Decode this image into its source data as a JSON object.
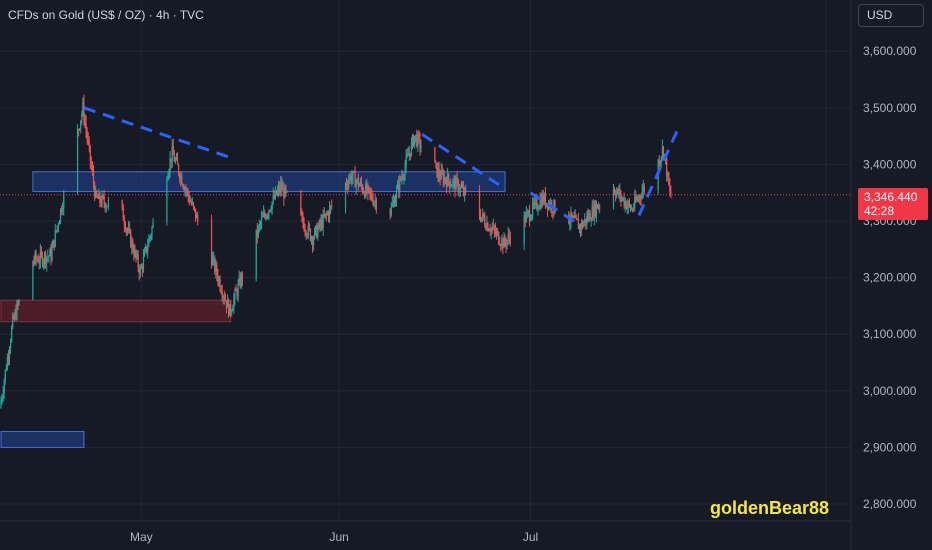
{
  "header": {
    "title": "CFDs on Gold (US$ / OZ) · 4h · TVC"
  },
  "currency_button": {
    "label": "USD"
  },
  "price_badge": {
    "price": "3,346.440",
    "countdown": "42:28"
  },
  "watermark": {
    "text": "goldenBear88"
  },
  "colors": {
    "background": "#161a25",
    "grid": "#232632",
    "up": "#26a69a",
    "down": "#ef5350",
    "trendline": "#2962ff",
    "blue_zone": "#1e3a7a",
    "red_zone": "#5c1f2a",
    "price_line": "#f23645",
    "watermark": "#f5e642"
  },
  "chart_data": {
    "type": "candlestick",
    "title": "CFDs on Gold (US$ / OZ) · 4h · TVC",
    "interval": "4h",
    "currency": "USD",
    "y_axis": {
      "range": [
        2750,
        3650
      ],
      "ticks": [
        2800,
        2900,
        3000,
        3100,
        3200,
        3300,
        3400,
        3500,
        3600
      ],
      "tick_labels": [
        "2,800.000",
        "2,900.000",
        "3,000.000",
        "3,100.000",
        "3,200.000",
        "3,300.000",
        "3,400.000",
        "3,500.000",
        "3,600.000"
      ]
    },
    "x_axis": {
      "date_range": [
        "2025-04-09",
        "2025-07-23"
      ],
      "month_labels": [
        {
          "date": "2025-05-01",
          "label": "May"
        },
        {
          "date": "2025-06-01",
          "label": "Jun"
        },
        {
          "date": "2025-07-01",
          "label": "Jul"
        }
      ]
    },
    "price_path": [
      {
        "date": "2025-04-09",
        "price": 2970
      },
      {
        "date": "2025-04-11",
        "price": 3120
      },
      {
        "date": "2025-04-14",
        "price": 3230
      },
      {
        "date": "2025-04-17",
        "price": 3240
      },
      {
        "date": "2025-04-22",
        "price": 3500
      },
      {
        "date": "2025-04-24",
        "price": 3340
      },
      {
        "date": "2025-04-28",
        "price": 3320
      },
      {
        "date": "2025-05-01",
        "price": 3210
      },
      {
        "date": "2025-05-06",
        "price": 3420
      },
      {
        "date": "2025-05-09",
        "price": 3330
      },
      {
        "date": "2025-05-12",
        "price": 3240
      },
      {
        "date": "2025-05-15",
        "price": 3140
      },
      {
        "date": "2025-05-20",
        "price": 3300
      },
      {
        "date": "2025-05-23",
        "price": 3360
      },
      {
        "date": "2025-05-28",
        "price": 3270
      },
      {
        "date": "2025-06-03",
        "price": 3380
      },
      {
        "date": "2025-06-09",
        "price": 3310
      },
      {
        "date": "2025-06-13",
        "price": 3450
      },
      {
        "date": "2025-06-17",
        "price": 3380
      },
      {
        "date": "2025-06-20",
        "price": 3360
      },
      {
        "date": "2025-06-24",
        "price": 3300
      },
      {
        "date": "2025-06-27",
        "price": 3260
      },
      {
        "date": "2025-07-03",
        "price": 3340
      },
      {
        "date": "2025-07-09",
        "price": 3290
      },
      {
        "date": "2025-07-14",
        "price": 3360
      },
      {
        "date": "2025-07-17",
        "price": 3320
      },
      {
        "date": "2025-07-21",
        "price": 3400
      },
      {
        "date": "2025-07-22",
        "price": 3430
      },
      {
        "date": "2025-07-23",
        "price": 3346.44
      }
    ],
    "last_price": 3346.44,
    "annotations": {
      "zones": [
        {
          "name": "blue-resistance-zone",
          "x1": "2025-04-14",
          "x2": "2025-06-27",
          "y1": 3352,
          "y2": 3387,
          "color": "#1e3a7a"
        },
        {
          "name": "red-support-zone",
          "x1": "2025-04-09",
          "x2": "2025-05-15",
          "y1": 3122,
          "y2": 3160,
          "color": "#5c1f2a"
        },
        {
          "name": "blue-low-zone",
          "x1": "2025-04-09",
          "x2": "2025-04-22",
          "y1": 2900,
          "y2": 2928,
          "color": "#1e3a7a"
        }
      ],
      "trendlines": [
        {
          "name": "trendline-1",
          "from": {
            "date": "2025-04-22",
            "price": 3500
          },
          "to": {
            "date": "2025-05-15",
            "price": 3412
          }
        },
        {
          "name": "trendline-2",
          "from": {
            "date": "2025-06-14",
            "price": 3453
          },
          "to": {
            "date": "2025-06-27",
            "price": 3357
          }
        },
        {
          "name": "trendline-3",
          "from": {
            "date": "2025-07-01",
            "price": 3350
          },
          "to": {
            "date": "2025-07-08",
            "price": 3298
          }
        },
        {
          "name": "trendline-4",
          "from": {
            "date": "2025-07-18",
            "price": 3310
          },
          "to": {
            "date": "2025-07-24",
            "price": 3460
          }
        }
      ]
    }
  }
}
